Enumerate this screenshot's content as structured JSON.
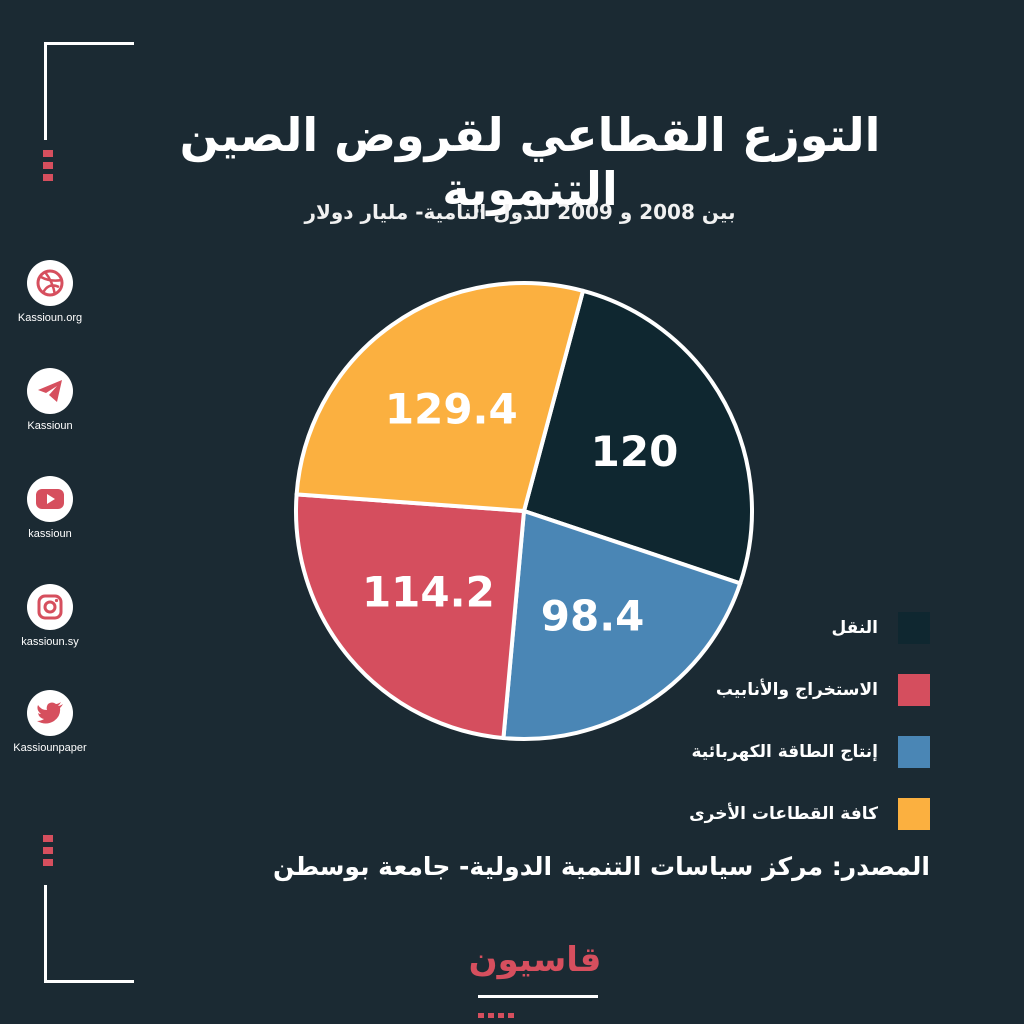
{
  "header": {
    "title": "التوزع القطاعي لقروض الصين التنموية",
    "subtitle": "بين 2008 و 2009 للدول النامية- مليار دولار"
  },
  "social": [
    {
      "icon": "dribbble-icon",
      "caption": "Kassioun.org"
    },
    {
      "icon": "telegram-icon",
      "caption": "Kassioun"
    },
    {
      "icon": "youtube-icon",
      "caption": "kassioun"
    },
    {
      "icon": "instagram-icon",
      "caption": "kassioun.sy"
    },
    {
      "icon": "twitter-icon",
      "caption": "Kassiounpaper"
    }
  ],
  "chart_data": {
    "type": "pie",
    "slices": [
      {
        "label": "النقل",
        "value": 120,
        "display": "120",
        "color": "#0f2730"
      },
      {
        "label": "إنتاج الطاقة الكهربائية",
        "value": 98.4,
        "display": "98.4",
        "color": "#4a86b5"
      },
      {
        "label": "الاستخراج والأنابيب",
        "value": 114.2,
        "display": "114.2",
        "color": "#d54e5e"
      },
      {
        "label": "كافة القطاعات الأخرى",
        "value": 129.4,
        "display": "129.4",
        "color": "#fbb040"
      }
    ],
    "legend_position": "bottom-right"
  },
  "legend": [
    {
      "label": "النقل",
      "color": "#0f2730"
    },
    {
      "label": "الاستخراج والأنابيب",
      "color": "#d54e5e"
    },
    {
      "label": "إنتاج الطاقة الكهربائية",
      "color": "#4a86b5"
    },
    {
      "label": "كافة القطاعات الأخرى",
      "color": "#fbb040"
    }
  ],
  "footer": {
    "source": "المصدر: مركز سياسات التنمية الدولية- جامعة بوسطن",
    "brand": "قاسيون"
  },
  "colors": {
    "background": "#1b2a33",
    "accent": "#d64f5e",
    "icon": "#d64f5e"
  }
}
